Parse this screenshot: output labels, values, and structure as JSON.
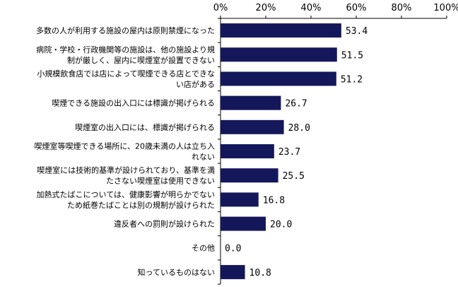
{
  "chart_data": {
    "type": "bar",
    "orientation": "horizontal",
    "title": "",
    "xlabel": "",
    "ylabel": "",
    "xlim": [
      0,
      100
    ],
    "x_ticks": [
      "0%",
      "20%",
      "40%",
      "60%",
      "80%",
      "100%"
    ],
    "grid": false,
    "legend": "none",
    "bar_color": "#14185a",
    "categories": [
      [
        "多数の人が利用する施設の屋内は原則禁煙になった"
      ],
      [
        "病院・学校・行政機関等の施設は、他の施設より規",
        "制が厳しく、屋内に喫煙室が設置できない"
      ],
      [
        "小規模飲食店では店によって喫煙できる店とできな",
        "い店がある"
      ],
      [
        "喫煙できる施設の出入口には標識が掲げられる"
      ],
      [
        "喫煙室の出入口には、標識が掲げられる"
      ],
      [
        "喫煙室等喫煙できる場所に、20歳未満の人は立ち入",
        "れない"
      ],
      [
        "喫煙室には技術的基準が設けられており、基準を満",
        "たさない喫煙室は使用できない"
      ],
      [
        "加熱式たばこについては、健康影響が明らかでない",
        "ため紙巻たばことは別の規制が設けられた"
      ],
      [
        "違反者への罰則が設けられた"
      ],
      [
        "その他"
      ],
      [
        "知っているものはない"
      ]
    ],
    "values": [
      53.4,
      51.5,
      51.2,
      26.7,
      28.0,
      23.7,
      25.5,
      16.8,
      20.0,
      0.0,
      10.8
    ],
    "value_labels": [
      "53.4",
      "51.5",
      "51.2",
      "26.7",
      "28.0",
      "23.7",
      "25.5",
      "16.8",
      "20.0",
      "0.0",
      "10.8"
    ]
  }
}
